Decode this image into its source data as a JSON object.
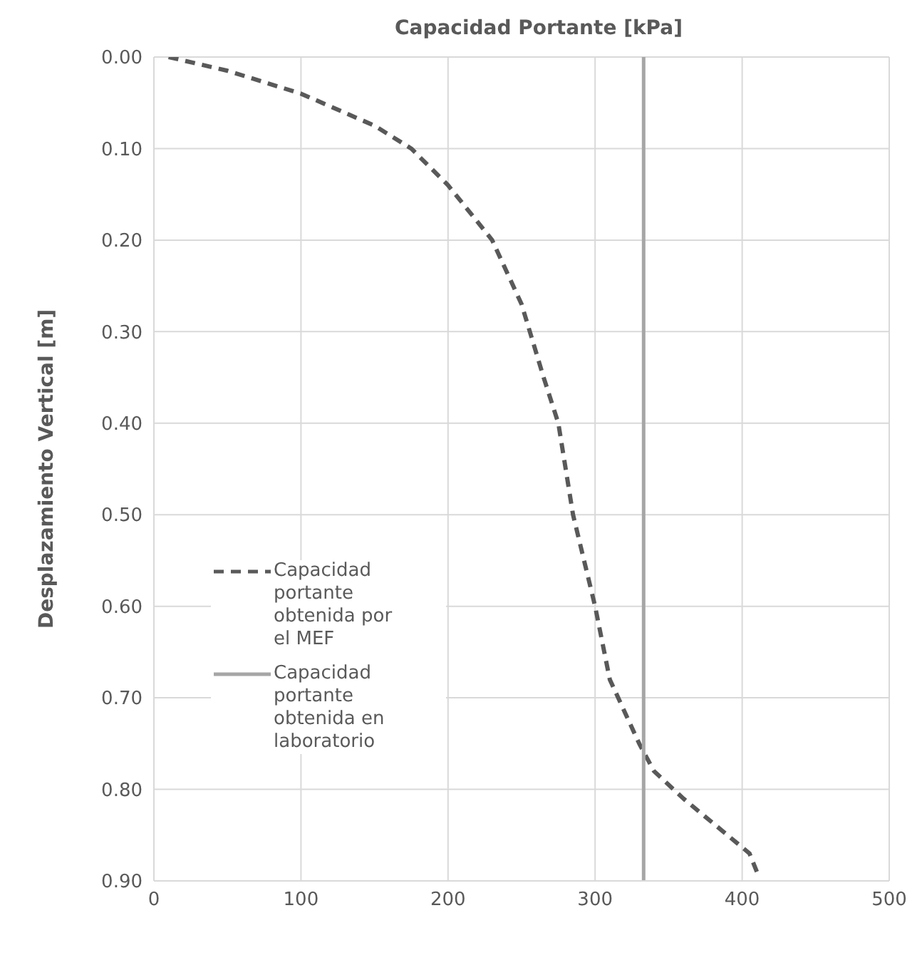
{
  "chart_data": {
    "type": "line",
    "title": "Capacidad Portante [kPa]",
    "ylabel": "Desplazamiento Vertical [m]",
    "series": [
      {
        "name": "Capacidad portante obtenida por el MEF",
        "color": "#595959",
        "line_style": "dashed",
        "x": [
          10,
          50,
          100,
          150,
          175,
          200,
          230,
          250,
          265,
          275,
          285,
          300,
          310,
          330,
          340,
          360,
          390,
          405,
          410
        ],
        "values": [
          0.0,
          0.015,
          0.04,
          0.075,
          0.1,
          0.14,
          0.2,
          0.27,
          0.35,
          0.4,
          0.5,
          0.6,
          0.68,
          0.75,
          0.78,
          0.81,
          0.85,
          0.87,
          0.89
        ]
      },
      {
        "name": "Capacidad portante obtenida en laboratorio",
        "color": "#a6a6a6",
        "line_style": "solid",
        "x": [
          333,
          333
        ],
        "values": [
          0,
          0.9
        ]
      }
    ],
    "xlim": [
      0,
      500
    ],
    "xticks": [
      0,
      100,
      200,
      300,
      400,
      500
    ],
    "ylim": [
      0.9,
      0
    ],
    "yticks": [
      {
        "value": 0,
        "label": "0.00"
      },
      {
        "value": 0.1,
        "label": "0.10"
      },
      {
        "value": 0.2,
        "label": "0.20"
      },
      {
        "value": 0.3,
        "label": "0.30"
      },
      {
        "value": 0.4,
        "label": "0.40"
      },
      {
        "value": 0.5,
        "label": "0.50"
      },
      {
        "value": 0.6,
        "label": "0.60"
      },
      {
        "value": 0.7,
        "label": "0.70"
      },
      {
        "value": 0.8,
        "label": "0.80"
      },
      {
        "value": 0.9,
        "label": "0.90"
      }
    ],
    "grid": true,
    "legend": "left",
    "marker": "none"
  }
}
